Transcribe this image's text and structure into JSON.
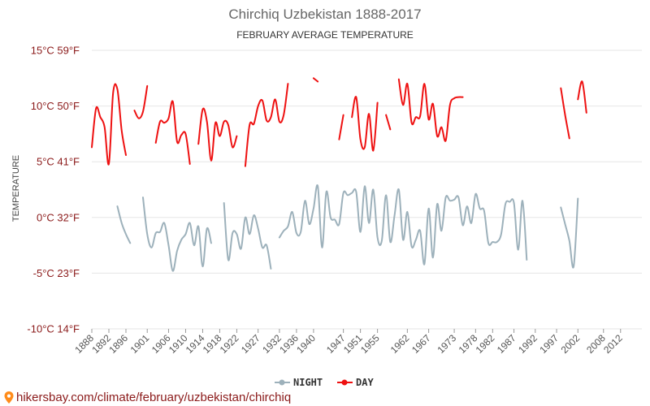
{
  "chart_data": {
    "type": "line",
    "title": "Chirchiq Uzbekistan 1888-2017",
    "subtitle": "FEBRUARY AVERAGE TEMPERATURE",
    "ylabel": "TEMPERATURE",
    "xlabel": "",
    "ylim": [
      -10,
      15
    ],
    "xlim": [
      1888,
      2017
    ],
    "y_ticks": [
      {
        "value": 15,
        "label": "15°C 59°F"
      },
      {
        "value": 10,
        "label": "10°C 50°F"
      },
      {
        "value": 5,
        "label": "5°C 41°F"
      },
      {
        "value": 0,
        "label": "0°C 32°F"
      },
      {
        "value": -5,
        "label": "-5°C 23°F"
      },
      {
        "value": -10,
        "label": "-10°C 14°F"
      }
    ],
    "x_ticks": [
      1888,
      1892,
      1896,
      1901,
      1906,
      1910,
      1914,
      1918,
      1922,
      1927,
      1932,
      1936,
      1940,
      1947,
      1951,
      1955,
      1962,
      1967,
      1973,
      1978,
      1982,
      1987,
      1992,
      1997,
      2002,
      2008,
      2012
    ],
    "legend": {
      "position": "bottom-center"
    },
    "grid": true,
    "series": [
      {
        "name": "NIGHT",
        "color": "#9db1bb",
        "segments": [
          [
            [
              1894,
              1.0
            ],
            [
              1895,
              -0.5
            ],
            [
              1896,
              -1.5
            ],
            [
              1897,
              -2.3
            ]
          ],
          [
            [
              1900,
              1.8
            ],
            [
              1901,
              -1.5
            ],
            [
              1902,
              -2.7
            ],
            [
              1903,
              -1.4
            ],
            [
              1904,
              -1.3
            ],
            [
              1905,
              -0.5
            ],
            [
              1906,
              -2.5
            ],
            [
              1907,
              -4.8
            ],
            [
              1908,
              -3.0
            ],
            [
              1909,
              -2.0
            ],
            [
              1910,
              -1.5
            ],
            [
              1911,
              -0.5
            ],
            [
              1912,
              -2.5
            ],
            [
              1913,
              -0.8
            ],
            [
              1914,
              -4.4
            ],
            [
              1915,
              -1.0
            ],
            [
              1916,
              -2.3
            ]
          ],
          [
            [
              1919,
              1.3
            ],
            [
              1920,
              -3.8
            ],
            [
              1921,
              -1.4
            ],
            [
              1922,
              -1.5
            ],
            [
              1923,
              -2.8
            ],
            [
              1924,
              0.0
            ],
            [
              1925,
              -1.5
            ],
            [
              1926,
              0.2
            ],
            [
              1927,
              -1.0
            ],
            [
              1928,
              -2.7
            ],
            [
              1929,
              -2.5
            ],
            [
              1930,
              -4.6
            ]
          ],
          [
            [
              1932,
              -1.8
            ],
            [
              1933,
              -1.2
            ],
            [
              1934,
              -0.8
            ],
            [
              1935,
              0.5
            ],
            [
              1936,
              -1.4
            ],
            [
              1937,
              -1.3
            ],
            [
              1938,
              1.5
            ],
            [
              1939,
              -0.6
            ],
            [
              1940,
              0.8
            ],
            [
              1941,
              2.8
            ],
            [
              1942,
              -2.7
            ],
            [
              1943,
              2.3
            ],
            [
              1944,
              0.0
            ],
            [
              1945,
              -0.2
            ],
            [
              1946,
              -0.6
            ],
            [
              1947,
              2.2
            ],
            [
              1948,
              2.0
            ],
            [
              1949,
              2.2
            ],
            [
              1950,
              2.3
            ],
            [
              1951,
              -1.3
            ],
            [
              1952,
              2.8
            ],
            [
              1953,
              -0.5
            ],
            [
              1954,
              2.5
            ],
            [
              1955,
              -1.8
            ],
            [
              1956,
              -2.1
            ],
            [
              1957,
              2.0
            ],
            [
              1958,
              -2.2
            ],
            [
              1959,
              0.2
            ],
            [
              1960,
              2.5
            ],
            [
              1961,
              -2.0
            ],
            [
              1962,
              0.5
            ],
            [
              1963,
              -2.6
            ],
            [
              1964,
              -2.0
            ],
            [
              1965,
              -1.2
            ],
            [
              1966,
              -4.2
            ],
            [
              1967,
              0.8
            ],
            [
              1968,
              -3.6
            ],
            [
              1969,
              1.2
            ],
            [
              1970,
              -1.2
            ],
            [
              1971,
              1.8
            ],
            [
              1972,
              1.5
            ],
            [
              1973,
              1.6
            ],
            [
              1974,
              1.8
            ],
            [
              1975,
              -0.7
            ],
            [
              1976,
              1.0
            ],
            [
              1977,
              -0.5
            ],
            [
              1978,
              2.1
            ],
            [
              1979,
              0.8
            ],
            [
              1980,
              0.6
            ],
            [
              1981,
              -2.3
            ],
            [
              1982,
              -2.2
            ],
            [
              1983,
              -2.2
            ],
            [
              1984,
              -1.5
            ],
            [
              1985,
              1.2
            ],
            [
              1986,
              1.4
            ],
            [
              1987,
              1.3
            ],
            [
              1988,
              -2.9
            ],
            [
              1989,
              1.5
            ],
            [
              1990,
              -3.8
            ]
          ]
        ],
        "extra_segments": [
          [
            [
              1998,
              0.9
            ],
            [
              1999,
              -0.6
            ],
            [
              2000,
              -2.1
            ],
            [
              2001,
              -4.4
            ],
            [
              2002,
              1.7
            ]
          ]
        ]
      },
      {
        "name": "DAY",
        "color": "#ee1111",
        "segments": [
          [
            [
              1888,
              6.3
            ],
            [
              1889,
              9.8
            ],
            [
              1890,
              9.0
            ],
            [
              1891,
              8.1
            ],
            [
              1892,
              4.8
            ],
            [
              1893,
              11.2
            ],
            [
              1894,
              11.5
            ],
            [
              1895,
              7.8
            ],
            [
              1896,
              5.6
            ]
          ],
          [
            [
              1898,
              9.6
            ],
            [
              1899,
              8.9
            ],
            [
              1900,
              9.5
            ],
            [
              1901,
              11.8
            ]
          ],
          [
            [
              1903,
              6.7
            ],
            [
              1904,
              8.6
            ],
            [
              1905,
              8.5
            ],
            [
              1906,
              8.9
            ],
            [
              1907,
              10.4
            ],
            [
              1908,
              6.8
            ],
            [
              1909,
              7.4
            ],
            [
              1910,
              7.5
            ],
            [
              1911,
              4.8
            ]
          ],
          [
            [
              1913,
              6.6
            ],
            [
              1914,
              9.7
            ],
            [
              1915,
              8.6
            ],
            [
              1916,
              5.1
            ],
            [
              1917,
              8.5
            ],
            [
              1918,
              7.3
            ],
            [
              1919,
              8.6
            ],
            [
              1920,
              8.3
            ],
            [
              1921,
              6.3
            ],
            [
              1922,
              7.3
            ]
          ],
          [
            [
              1924,
              4.6
            ],
            [
              1925,
              8.3
            ],
            [
              1926,
              8.4
            ],
            [
              1927,
              10.0
            ],
            [
              1928,
              10.5
            ],
            [
              1929,
              8.7
            ],
            [
              1930,
              9.0
            ],
            [
              1931,
              10.6
            ],
            [
              1932,
              8.6
            ],
            [
              1933,
              9.2
            ],
            [
              1934,
              12.0
            ]
          ],
          [
            [
              1940,
              12.5
            ],
            [
              1941,
              12.2
            ]
          ],
          [
            [
              1946,
              7.0
            ],
            [
              1947,
              9.2
            ]
          ],
          [
            [
              1949,
              9.0
            ],
            [
              1950,
              10.8
            ],
            [
              1951,
              7.0
            ],
            [
              1952,
              6.3
            ],
            [
              1953,
              9.3
            ],
            [
              1954,
              6.0
            ],
            [
              1955,
              10.3
            ]
          ],
          [
            [
              1957,
              9.2
            ],
            [
              1958,
              7.9
            ]
          ],
          [
            [
              1960,
              12.4
            ],
            [
              1961,
              10.1
            ],
            [
              1962,
              12.0
            ],
            [
              1963,
              8.5
            ],
            [
              1964,
              9.0
            ],
            [
              1965,
              9.1
            ],
            [
              1966,
              12.0
            ],
            [
              1967,
              8.8
            ],
            [
              1968,
              10.2
            ],
            [
              1969,
              7.3
            ],
            [
              1970,
              8.1
            ],
            [
              1971,
              6.9
            ],
            [
              1972,
              10.1
            ],
            [
              1973,
              10.7
            ],
            [
              1974,
              10.8
            ],
            [
              1975,
              10.8
            ]
          ]
        ],
        "extra_segments": [
          [
            [
              1998,
              11.6
            ],
            [
              1999,
              9.2
            ],
            [
              2000,
              7.1
            ]
          ],
          [
            [
              2002,
              10.6
            ],
            [
              2003,
              12.2
            ],
            [
              2004,
              9.4
            ]
          ]
        ]
      }
    ]
  },
  "source_text": "hikersbay.com/climate/february/uzbekistan/chirchiq"
}
